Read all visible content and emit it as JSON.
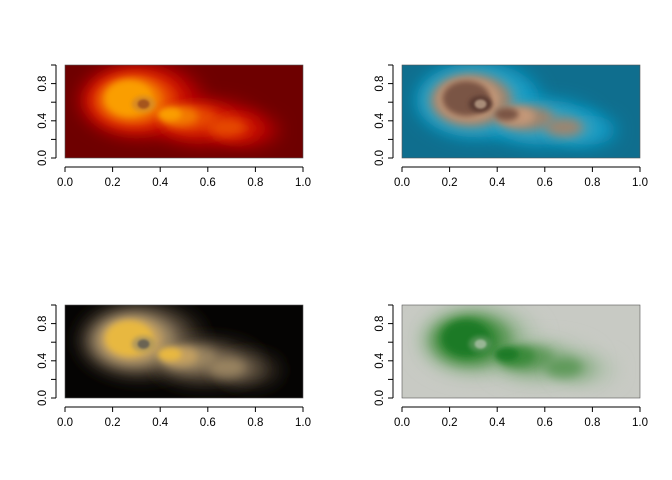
{
  "chart_data": [
    {
      "type": "heatmap",
      "panel": "top-left",
      "palette": [
        "#b30000",
        "#d21a00",
        "#e64a00",
        "#f27a00",
        "#fa9e00",
        "#fcb300",
        "#d98a20",
        "#a5541a"
      ],
      "background": "#6e0000",
      "xlim": [
        0,
        1
      ],
      "ylim": [
        0,
        1
      ],
      "x_ticks": [
        "0.0",
        "0.2",
        "0.4",
        "0.6",
        "0.8",
        "1.0"
      ],
      "y_ticks": [
        "0.0",
        "0.4",
        "0.8"
      ]
    },
    {
      "type": "heatmap",
      "panel": "top-right",
      "palette": [
        "#0a9cc8",
        "#3a9fba",
        "#9c8570",
        "#c49878",
        "#7a5545",
        "#2a1a14",
        "#5a3a30",
        "#a88c78"
      ],
      "background": "#0f6e8e",
      "xlim": [
        0,
        1
      ],
      "ylim": [
        0,
        1
      ],
      "x_ticks": [
        "0.0",
        "0.2",
        "0.4",
        "0.6",
        "0.8",
        "1.0"
      ],
      "y_ticks": [
        "0.0",
        "0.4",
        "0.8"
      ]
    },
    {
      "type": "heatmap",
      "panel": "bottom-left",
      "palette": [
        "#3a3228",
        "#6a5c48",
        "#9a8460",
        "#c4a060",
        "#e8b840",
        "#f2c040",
        "#b49a5a",
        "#6a6452"
      ],
      "background": "#050403",
      "xlim": [
        0,
        1
      ],
      "ylim": [
        0,
        1
      ],
      "x_ticks": [
        "0.0",
        "0.2",
        "0.4",
        "0.6",
        "0.8",
        "1.0"
      ],
      "y_ticks": [
        "0.0",
        "0.4",
        "0.8"
      ]
    },
    {
      "type": "heatmap",
      "panel": "bottom-right",
      "palette": [
        "#b4c2b0",
        "#8fb08a",
        "#5e9a5a",
        "#3a8a3a",
        "#1f7a28",
        "#1a7022",
        "#4e9050",
        "#98b694"
      ],
      "background": "#c8cac4",
      "xlim": [
        0,
        1
      ],
      "ylim": [
        0,
        1
      ],
      "x_ticks": [
        "0.0",
        "0.2",
        "0.4",
        "0.6",
        "0.8",
        "1.0"
      ],
      "y_ticks": [
        "0.0",
        "0.4",
        "0.8"
      ]
    }
  ]
}
